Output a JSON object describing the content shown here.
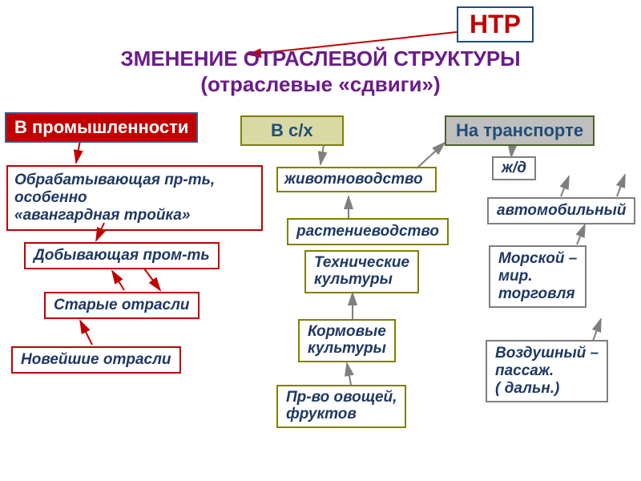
{
  "colors": {
    "title": "#6b1b8a",
    "ntr_text": "#c00000",
    "ntr_border": "#1f4e79",
    "cat_industry_bg": "#c00000",
    "cat_industry_text": "#ffffff",
    "cat_industry_border": "#385d8a",
    "cat_agri_bg": "#d9d9a3",
    "cat_agri_text": "#1f4e79",
    "cat_agri_border": "#808000",
    "cat_trans_bg": "#bfbfbf",
    "cat_trans_text": "#1f4e79",
    "cat_trans_border": "#4f6228",
    "red_border": "#c00000",
    "olive_border": "#808000",
    "gray_border": "#7f7f7f",
    "navy_text": "#1f3864",
    "italic_text": "#1f3864",
    "arrow_red": "#c00000",
    "arrow_gray": "#7f7f7f"
  },
  "ntr": "НТР",
  "title_line1": "ЗМЕНЕНИЕ ОТРАСЛЕВОЙ СТРУКТУРЫ",
  "title_line2": "(отраслевые «сдвиги»)",
  "cat_industry": "В промышленности",
  "cat_agri": "В с/х",
  "cat_trans": "На транспорте",
  "ind_processing": "Обрабатывающая пр-ть, особенно\n «авангардная тройка»",
  "ind_mining": "Добывающая пром-ть",
  "ind_old": "Старые отрасли",
  "ind_new": "Новейшие отрасли",
  "agri_livestock": "животноводство",
  "agri_crop": "растениеводство",
  "agri_tech": "Технические\n культуры",
  "agri_feed": "Кормовые\nкультуры",
  "agri_veg": "Пр-во овощей,\n фруктов",
  "trans_rail": "ж/д",
  "trans_auto": "автомобильный",
  "trans_sea": "Морской –\n мир.\n торговля",
  "trans_air": "Воздушный –\n пассаж.\n( дальн.)",
  "fonts": {
    "ntr_size": 32,
    "title_size": 26,
    "cat_size": 22,
    "box_size": 19
  }
}
